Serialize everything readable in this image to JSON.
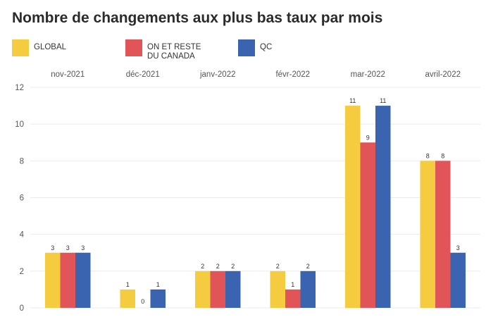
{
  "chart_data": {
    "type": "bar",
    "title": "Nombre de changements aux plus bas taux par mois",
    "categories": [
      "nov-2021",
      "déc-2021",
      "janv-2022",
      "févr-2022",
      "mar-2022",
      "avril-2022"
    ],
    "series": [
      {
        "name": "GLOBAL",
        "color": "#F5CB3F",
        "values": [
          3,
          1,
          2,
          2,
          11,
          8
        ]
      },
      {
        "name": "ON ET RESTE\nDU CANADA",
        "color": "#E15558",
        "values": [
          3,
          0,
          2,
          1,
          9,
          8
        ]
      },
      {
        "name": "QC",
        "color": "#3A64B0",
        "values": [
          3,
          1,
          2,
          2,
          11,
          3
        ]
      }
    ],
    "ylim": [
      0,
      12
    ],
    "yticks": [
      0,
      2,
      4,
      6,
      8,
      10,
      12
    ],
    "grid": true,
    "legend_position": "top-left",
    "xaxis_position": "top",
    "xlabel": "",
    "ylabel": ""
  }
}
